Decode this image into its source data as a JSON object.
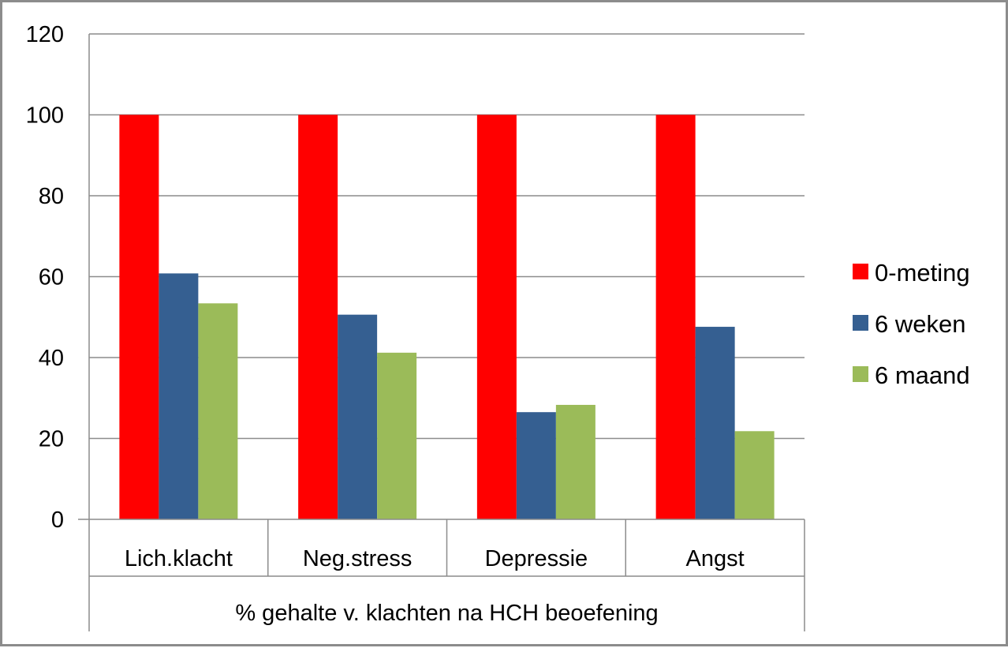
{
  "chart_data": {
    "type": "bar",
    "title": "",
    "xlabel": "% gehalte v. klachten na HCH beoefening",
    "ylabel": "",
    "categories": [
      "Lich.klacht",
      "Neg.stress",
      "Depressie",
      "Angst"
    ],
    "series": [
      {
        "name": "0-meting",
        "color": "#ff0000",
        "values": [
          100,
          100,
          100,
          100
        ]
      },
      {
        "name": "6 weken",
        "color": "#355f91",
        "values": [
          60.8,
          50.6,
          26.5,
          47.6
        ]
      },
      {
        "name": "6 maand",
        "color": "#9bbb59",
        "values": [
          53.4,
          41.2,
          28.3,
          21.8
        ]
      }
    ],
    "ylim": [
      0,
      120
    ],
    "yticks": [
      "0",
      "20",
      "40",
      "60",
      "80",
      "100",
      "120"
    ],
    "grid": true,
    "legend_position": "right"
  }
}
